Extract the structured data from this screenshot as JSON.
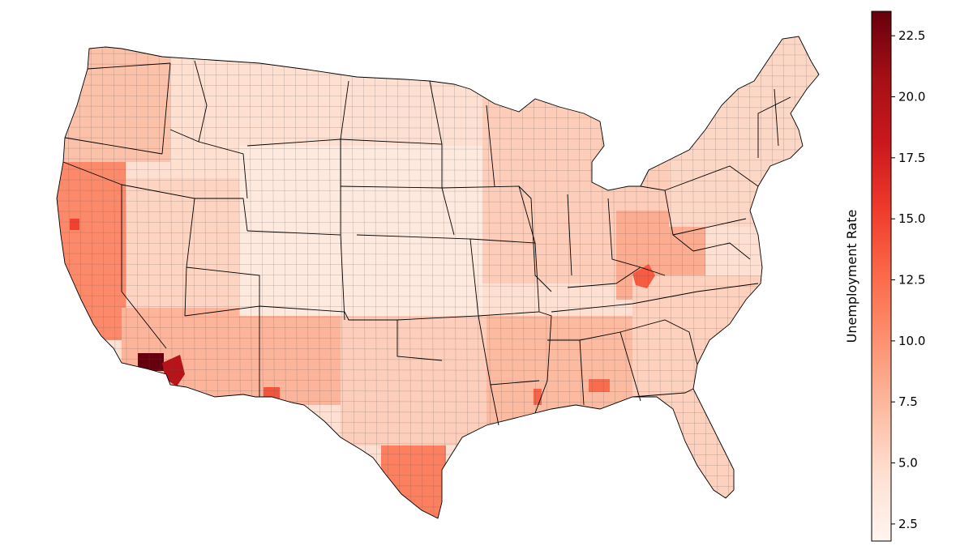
{
  "map": {
    "subject": "contiguous-united-states",
    "level": "county",
    "colormap": {
      "name": "Reds",
      "stops": [
        "#fff5f0",
        "#fee0d2",
        "#fcbba1",
        "#fc9272",
        "#fb6a4a",
        "#ef3b2c",
        "#cb181d",
        "#a50f15",
        "#67000d"
      ]
    },
    "state_border_color": "#000000",
    "county_border_color": "#5a5a5a"
  },
  "colorbar": {
    "label": "Unemployment Rate",
    "min": 1.8,
    "max": 23.5,
    "ticks": [
      {
        "value": 2.5,
        "label": "2.5"
      },
      {
        "value": 5.0,
        "label": "5.0"
      },
      {
        "value": 7.5,
        "label": "7.5"
      },
      {
        "value": 10.0,
        "label": "10.0"
      },
      {
        "value": 12.5,
        "label": "12.5"
      },
      {
        "value": 15.0,
        "label": "15.0"
      },
      {
        "value": 17.5,
        "label": "17.5"
      },
      {
        "value": 20.0,
        "label": "20.0"
      },
      {
        "value": 22.5,
        "label": "22.5"
      }
    ]
  },
  "regions": [
    {
      "name": "pacific-northwest",
      "rate": 6.8
    },
    {
      "name": "california-central-valley",
      "rate": 10.5
    },
    {
      "name": "nevada-utah",
      "rate": 5.4
    },
    {
      "name": "mountain-north",
      "rate": 4.6
    },
    {
      "name": "southwest",
      "rate": 7.6
    },
    {
      "name": "great-plains",
      "rate": 3.4
    },
    {
      "name": "texas",
      "rate": 5.8
    },
    {
      "name": "texas-rio-grande",
      "rate": 11.2
    },
    {
      "name": "midwest",
      "rate": 5.9
    },
    {
      "name": "appalachia",
      "rate": 8.2
    },
    {
      "name": "deep-south",
      "rate": 7.2
    },
    {
      "name": "southeast",
      "rate": 5.6
    },
    {
      "name": "northeast",
      "rate": 5.2
    },
    {
      "name": "imperial-county",
      "rate": 23.5
    },
    {
      "name": "yuma-county",
      "rate": 19.5
    },
    {
      "name": "kentucky-hotspot",
      "rate": 13.5
    },
    {
      "name": "mississippi-delta",
      "rate": 13.0
    },
    {
      "name": "luna-county",
      "rate": 14.0
    },
    {
      "name": "alabama-black-belt",
      "rate": 12.5
    },
    {
      "name": "colusa-county",
      "rate": 15.0
    }
  ]
}
